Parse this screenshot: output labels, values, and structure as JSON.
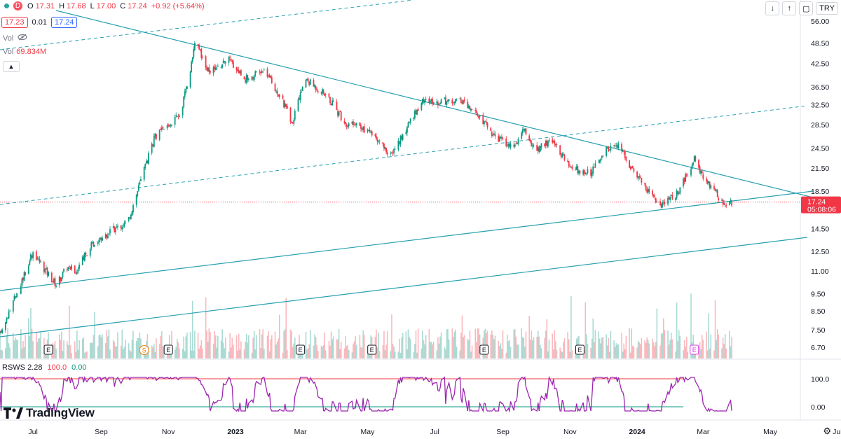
{
  "header": {
    "interval": "D",
    "open_label": "O",
    "open": "17.31",
    "high_label": "H",
    "high": "17.68",
    "low_label": "L",
    "low": "17.00",
    "close_label": "C",
    "close": "17.24",
    "change": "+0.92 (+5.64%)",
    "bid": "17.23",
    "spread": "0.01",
    "ask": "17.24",
    "vol_label": "Vol",
    "volume_label": "Vol",
    "volume_value": "69.834M",
    "currency": "TRY"
  },
  "indicator": {
    "name": "RSWS",
    "v1": "2.28",
    "v2": "100.0",
    "v3": "0.00"
  },
  "brand": "TradingView",
  "colors": {
    "up": "#089981",
    "down": "#f23645",
    "trend": "#26a0b0",
    "rsws": "#9c27b0"
  },
  "chart_data": {
    "type": "candlestick",
    "price_axis": {
      "scale": "log",
      "ticks": [
        "56.00",
        "48.50",
        "42.50",
        "36.50",
        "32.50",
        "28.50",
        "24.50",
        "21.50",
        "18.50",
        "16.50",
        "14.50",
        "12.50",
        "11.00",
        "9.50",
        "8.50",
        "7.50",
        "6.70"
      ]
    },
    "last_price": "17.24",
    "countdown": "05:08:06",
    "time_axis": [
      "Jul",
      "Sep",
      "Nov",
      "2023",
      "Mar",
      "May",
      "Jul",
      "Sep",
      "Nov",
      "2024",
      "Mar",
      "May",
      "Jul"
    ],
    "price_path": [
      [
        "2022-06-01",
        7.3
      ],
      [
        "2022-06-20",
        10.2
      ],
      [
        "2022-07-01",
        12.5
      ],
      [
        "2022-07-12",
        11.1
      ],
      [
        "2022-07-22",
        10.1
      ],
      [
        "2022-08-01",
        11.3
      ],
      [
        "2022-08-10",
        11.0
      ],
      [
        "2022-08-22",
        13.0
      ],
      [
        "2022-09-10",
        14.3
      ],
      [
        "2022-09-25",
        15.1
      ],
      [
        "2022-10-05",
        19.0
      ],
      [
        "2022-10-20",
        26.5
      ],
      [
        "2022-11-05",
        29.0
      ],
      [
        "2022-11-12",
        30.5
      ],
      [
        "2022-11-22",
        42.0
      ],
      [
        "2022-11-26",
        50.5
      ],
      [
        "2022-12-05",
        40.5
      ],
      [
        "2022-12-15",
        41.0
      ],
      [
        "2022-12-25",
        44.0
      ],
      [
        "2023-01-10",
        38.5
      ],
      [
        "2023-01-28",
        40.5
      ],
      [
        "2023-02-10",
        34.5
      ],
      [
        "2023-02-22",
        29.0
      ],
      [
        "2023-03-05",
        38.5
      ],
      [
        "2023-03-25",
        34.5
      ],
      [
        "2023-04-10",
        29.0
      ],
      [
        "2023-05-01",
        27.5
      ],
      [
        "2023-05-22",
        23.5
      ],
      [
        "2023-06-05",
        27.5
      ],
      [
        "2023-06-20",
        33.5
      ],
      [
        "2023-07-05",
        33.0
      ],
      [
        "2023-07-25",
        33.5
      ],
      [
        "2023-08-10",
        30.0
      ],
      [
        "2023-08-25",
        26.5
      ],
      [
        "2023-09-10",
        24.5
      ],
      [
        "2023-09-20",
        27.5
      ],
      [
        "2023-10-01",
        24.0
      ],
      [
        "2023-10-15",
        26.0
      ],
      [
        "2023-11-01",
        21.5
      ],
      [
        "2023-11-20",
        21.0
      ],
      [
        "2023-12-05",
        24.5
      ],
      [
        "2023-12-15",
        24.8
      ],
      [
        "2023-12-25",
        22.0
      ],
      [
        "2024-01-10",
        18.8
      ],
      [
        "2024-01-22",
        16.8
      ],
      [
        "2024-02-08",
        18.5
      ],
      [
        "2024-02-22",
        22.8
      ],
      [
        "2024-03-05",
        19.5
      ],
      [
        "2024-03-20",
        17.0
      ],
      [
        "2024-03-27",
        17.24
      ]
    ],
    "earnings_markers": [
      "E",
      "E",
      "E",
      "E",
      "E",
      "E"
    ],
    "dividend_markers": [
      "S"
    ],
    "rsws": {
      "levels": [
        "100.0",
        "0.00"
      ]
    }
  }
}
